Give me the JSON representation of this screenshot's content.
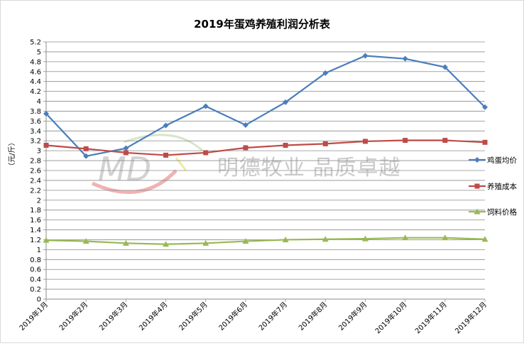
{
  "chart_data": {
    "type": "line",
    "title": "2019年蛋鸡养殖利润分析表",
    "ylabel": "（元/斤）",
    "xlabel": "",
    "ylim": [
      0,
      5.2
    ],
    "ytick_step": 0.2,
    "grid": true,
    "legend_position": "right",
    "categories": [
      "2019年1月",
      "2019年2月",
      "2019年3月",
      "2019年4月",
      "2019年5月",
      "2019年6月",
      "2019年7月",
      "2019年8月",
      "2019年9月",
      "2019年10月",
      "2019年11月",
      "2019年12月"
    ],
    "series": [
      {
        "name": "鸡蛋均价",
        "color": "#4a7ebb",
        "marker": "diamond",
        "values": [
          3.75,
          2.89,
          3.05,
          3.51,
          3.9,
          3.52,
          3.98,
          4.57,
          4.92,
          4.86,
          4.69,
          3.88
        ]
      },
      {
        "name": "养殖成本",
        "color": "#be4b48",
        "marker": "square",
        "values": [
          3.11,
          3.04,
          2.96,
          2.91,
          2.96,
          3.06,
          3.11,
          3.14,
          3.19,
          3.21,
          3.21,
          3.17
        ]
      },
      {
        "name": "饲料价格",
        "color": "#98b954",
        "marker": "triangle",
        "values": [
          1.19,
          1.17,
          1.13,
          1.11,
          1.13,
          1.17,
          1.2,
          1.21,
          1.22,
          1.24,
          1.24,
          1.21
        ]
      }
    ]
  },
  "watermark": {
    "text": "明德牧业  品质卓越",
    "logo_text": "MD"
  }
}
